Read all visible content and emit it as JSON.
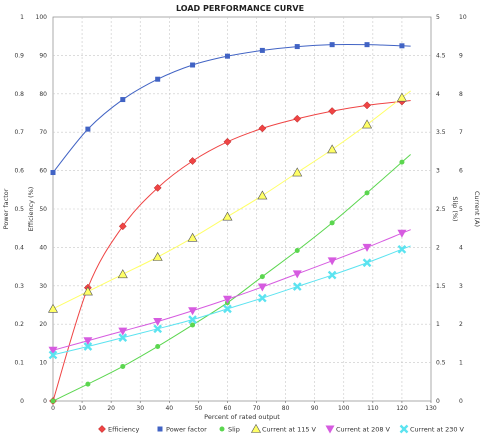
{
  "chart_data": {
    "type": "line",
    "title": "LOAD PERFORMANCE CURVE",
    "xlabel": "Percent of rated output",
    "xlim": [
      0,
      130
    ],
    "x_ticks": [
      "0",
      "10",
      "20",
      "30",
      "40",
      "50",
      "60",
      "70",
      "80",
      "90",
      "100",
      "110",
      "120",
      "130"
    ],
    "left_axes": [
      {
        "label": "Power factor",
        "ticks": [
          "0",
          "0.1",
          "0.2",
          "0.3",
          "0.4",
          "0.5",
          "0.6",
          "0.7",
          "0.8",
          "0.9",
          "1"
        ],
        "ylim": [
          0,
          1
        ]
      },
      {
        "label": "Efficiency (%)",
        "ticks": [
          "0",
          "10",
          "20",
          "30",
          "40",
          "50",
          "60",
          "70",
          "80",
          "90",
          "100"
        ],
        "ylim": [
          0,
          100
        ]
      }
    ],
    "right_axes": [
      {
        "label": "Slip (%)",
        "ticks": [
          "0",
          "0.5",
          "1",
          "1.5",
          "2",
          "2.5",
          "3",
          "3.5",
          "4",
          "4.5",
          "5"
        ],
        "ylim": [
          0,
          5
        ]
      },
      {
        "label": "Current (A)",
        "ticks": [
          "0",
          "1",
          "2",
          "3",
          "4",
          "5",
          "6",
          "7",
          "8",
          "9",
          "10"
        ],
        "ylim": [
          0,
          10
        ]
      }
    ],
    "series": [
      {
        "name": "Efficiency",
        "axis": "Efficiency (%)",
        "color": "#ef4444",
        "marker": "diamond",
        "x": [
          0,
          12,
          24,
          36,
          48,
          60,
          72,
          84,
          96,
          108,
          120
        ],
        "y": [
          0,
          29.5,
          45.5,
          55.5,
          62.5,
          67.5,
          71,
          73.5,
          75.5,
          77,
          78
        ]
      },
      {
        "name": "Power factor",
        "axis": "Power factor",
        "color": "#4163c4",
        "marker": "square",
        "x": [
          0,
          12,
          24,
          36,
          48,
          60,
          72,
          84,
          96,
          108,
          120
        ],
        "y": [
          0.595,
          0.708,
          0.785,
          0.838,
          0.875,
          0.898,
          0.913,
          0.923,
          0.928,
          0.928,
          0.925
        ]
      },
      {
        "name": "Slip",
        "axis": "Slip (%)",
        "color": "#5bd64f",
        "marker": "circle",
        "x": [
          0,
          12,
          24,
          36,
          48,
          60,
          72,
          84,
          96,
          108,
          120
        ],
        "y": [
          0,
          0.22,
          0.45,
          0.71,
          0.99,
          1.28,
          1.62,
          1.96,
          2.32,
          2.71,
          3.11
        ]
      },
      {
        "name": "Current at 115 V",
        "axis": "Current (A)",
        "color": "#ffff66",
        "marker": "triangle",
        "x": [
          0,
          12,
          24,
          36,
          48,
          60,
          72,
          84,
          96,
          108,
          120
        ],
        "y": [
          2.4,
          2.85,
          3.3,
          3.75,
          4.25,
          4.8,
          5.35,
          5.95,
          6.55,
          7.2,
          7.9
        ]
      },
      {
        "name": "Current at 208 V",
        "axis": "Current (A)",
        "color": "#d65be0",
        "marker": "triangle-down",
        "x": [
          0,
          12,
          24,
          36,
          48,
          60,
          72,
          84,
          96,
          108,
          120
        ],
        "y": [
          1.32,
          1.57,
          1.82,
          2.07,
          2.35,
          2.65,
          2.97,
          3.31,
          3.65,
          4.0,
          4.37
        ]
      },
      {
        "name": "Current at 230 V",
        "axis": "Current (A)",
        "color": "#5be3f0",
        "marker": "x",
        "x": [
          0,
          12,
          24,
          36,
          48,
          60,
          72,
          84,
          96,
          108,
          120
        ],
        "y": [
          1.2,
          1.42,
          1.65,
          1.88,
          2.12,
          2.4,
          2.68,
          2.98,
          3.28,
          3.6,
          3.95
        ]
      }
    ],
    "grid": true,
    "legend_placement": "bottom"
  }
}
